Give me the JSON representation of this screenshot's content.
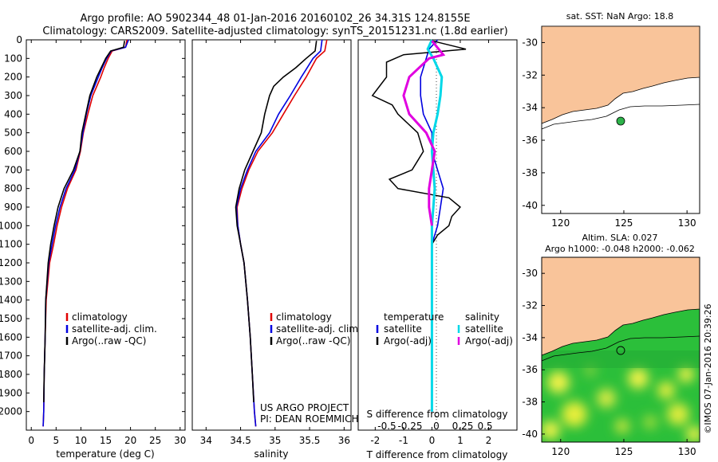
{
  "header": {
    "line1": "Argo profile: AO 5902344_48 01-Jan-2016 20160102_26 34.31S 124.8155E",
    "line2": "Climatology: CARS2009. Satellite-adjusted climatology: synTS_20151231.nc (1.8d earlier)"
  },
  "side_label": "©IMOS 07-Jan-2016 20:39:26",
  "colors": {
    "climatology": "#e00000",
    "satellite": "#0000e0",
    "argo": "#000000",
    "salinity_sat": "#00d8e8",
    "salinity_argo": "#e000e0",
    "land": "#f9c49a",
    "sea_green": "#2bbf3a",
    "float_marker": "#2db34a"
  },
  "chart_data": [
    {
      "type": "line",
      "id": "temperature",
      "xlabel": "temperature (deg C)",
      "ylabel": "",
      "xlim": [
        -1,
        31
      ],
      "ylim": [
        2100,
        0
      ],
      "x_ticks": [
        0,
        5,
        10,
        15,
        20,
        25,
        30
      ],
      "y_ticks": [
        0,
        100,
        200,
        300,
        400,
        500,
        600,
        700,
        800,
        900,
        1000,
        1100,
        1200,
        1300,
        1400,
        1500,
        1600,
        1700,
        1800,
        1900,
        2000
      ],
      "legend": [
        "climatology",
        "satellite-adj. clim.",
        "Argo(..raw -QC)"
      ],
      "series": [
        {
          "name": "climatology",
          "depth": [
            0,
            40,
            60,
            100,
            150,
            200,
            300,
            400,
            500,
            600,
            700,
            800,
            900,
            1000,
            1100,
            1200,
            1400,
            1600,
            1800,
            2000,
            2080
          ],
          "values": [
            19.3,
            19.0,
            16.3,
            15.5,
            14.7,
            14.0,
            12.4,
            11.4,
            10.5,
            9.9,
            9.0,
            7.3,
            6.1,
            5.2,
            4.5,
            3.7,
            3.0,
            2.8,
            2.6,
            2.5,
            2.4
          ]
        },
        {
          "name": "satellite-adj. clim.",
          "depth": [
            0,
            40,
            60,
            100,
            150,
            200,
            300,
            400,
            500,
            600,
            700,
            800,
            900,
            1000,
            1100,
            1200,
            1400,
            1600,
            1800,
            2000,
            2080
          ],
          "values": [
            19.6,
            19.0,
            16.1,
            15.2,
            14.3,
            13.5,
            12.0,
            11.1,
            10.4,
            9.8,
            8.8,
            7.0,
            5.8,
            4.9,
            4.2,
            3.5,
            2.9,
            2.8,
            2.6,
            2.5,
            2.4
          ]
        },
        {
          "name": "Argo(..raw -QC)",
          "depth": [
            5,
            40,
            60,
            100,
            150,
            200,
            300,
            400,
            500,
            600,
            700,
            800,
            900,
            1000,
            1100,
            1200,
            1400,
            1600,
            1800,
            1950
          ],
          "values": [
            18.8,
            18.6,
            16.0,
            15.0,
            14.1,
            13.2,
            11.8,
            11.0,
            10.2,
            9.8,
            8.5,
            6.6,
            5.4,
            4.6,
            3.9,
            3.4,
            2.9,
            2.8,
            2.6,
            2.5
          ]
        }
      ]
    },
    {
      "type": "line",
      "id": "salinity",
      "xlabel": "salinity",
      "xlim": [
        33.8,
        36.1
      ],
      "ylim": [
        2100,
        0
      ],
      "x_ticks": [
        34,
        34.5,
        35,
        35.5,
        36
      ],
      "legend": [
        "climatology",
        "satellite-adj. clim.",
        "Argo(..raw -QC)"
      ],
      "annotation": [
        "US ARGO PROJECT",
        "PI: DEAN ROEMMICH"
      ],
      "series": [
        {
          "name": "climatology",
          "depth": [
            0,
            60,
            100,
            200,
            300,
            400,
            500,
            600,
            700,
            800,
            900,
            1000,
            1100,
            1200,
            1400,
            1600,
            1800,
            2000,
            2080
          ],
          "values": [
            35.75,
            35.72,
            35.6,
            35.45,
            35.28,
            35.12,
            34.96,
            34.75,
            34.62,
            34.52,
            34.45,
            34.46,
            34.5,
            34.55,
            34.6,
            34.64,
            34.67,
            34.7,
            34.72
          ]
        },
        {
          "name": "satellite-adj. clim.",
          "depth": [
            0,
            60,
            100,
            200,
            300,
            400,
            500,
            600,
            700,
            800,
            900,
            1000,
            1100,
            1200,
            1400,
            1600,
            1800,
            2000,
            2080
          ],
          "values": [
            35.68,
            35.66,
            35.55,
            35.38,
            35.22,
            35.05,
            34.92,
            34.72,
            34.6,
            34.5,
            34.44,
            34.46,
            34.5,
            34.55,
            34.6,
            34.64,
            34.67,
            34.7,
            34.72
          ]
        },
        {
          "name": "Argo(..raw -QC)",
          "depth": [
            5,
            60,
            100,
            150,
            200,
            250,
            300,
            400,
            500,
            600,
            700,
            800,
            900,
            1000,
            1100,
            1200,
            1400,
            1600,
            1800,
            1950
          ],
          "values": [
            35.6,
            35.58,
            35.45,
            35.3,
            35.12,
            34.98,
            34.92,
            34.85,
            34.8,
            34.68,
            34.56,
            34.48,
            34.43,
            34.45,
            34.5,
            34.55,
            34.6,
            34.64,
            34.67,
            34.69
          ]
        }
      ]
    },
    {
      "type": "line",
      "id": "difference",
      "xlabel": "T difference from climatology",
      "top_axis_label": "S difference from climatology",
      "xlim": [
        -2.6,
        3.0
      ],
      "ylim": [
        2100,
        0
      ],
      "x_ticks": [
        -2,
        -1,
        0,
        1,
        2
      ],
      "top_ticks": [
        "-0.5",
        "-0.25",
        "0",
        "0.25",
        "0.5"
      ],
      "legend_temperature": [
        "temperature",
        "satellite",
        "Argo(-adj)"
      ],
      "legend_salinity": [
        "salinity",
        "satellite",
        "Argo(-adj)"
      ],
      "series": [
        {
          "name": "T satellite",
          "depth": [
            0,
            50,
            100,
            200,
            300,
            400,
            500,
            600,
            700,
            800,
            900,
            1000,
            1100,
            1200,
            1400,
            1700,
            2000
          ],
          "values": [
            0.2,
            -0.1,
            -0.2,
            -0.4,
            -0.4,
            -0.3,
            0.0,
            0.0,
            0.2,
            0.4,
            0.3,
            0.2,
            0.0,
            0.0,
            0.0,
            0.0,
            0.0
          ]
        },
        {
          "name": "T Argo(-adj)",
          "depth": [
            5,
            50,
            80,
            120,
            200,
            300,
            350,
            400,
            500,
            600,
            650,
            700,
            750,
            800,
            850,
            900,
            950,
            1000,
            1050,
            1100,
            1200
          ],
          "values": [
            0.0,
            1.2,
            -1.0,
            -1.6,
            -1.6,
            -2.1,
            -1.4,
            -1.2,
            -0.5,
            -0.3,
            -0.5,
            -0.7,
            -1.5,
            -1.2,
            0.6,
            1.0,
            0.7,
            0.6,
            0.2,
            0.0,
            0.0
          ]
        },
        {
          "name": "S satellite",
          "depth": [
            0,
            50,
            100,
            200,
            300,
            400,
            500,
            600,
            700,
            800,
            900,
            1000,
            1200,
            1400,
            1700,
            2000
          ],
          "values": [
            0.0,
            -0.15,
            0.05,
            0.35,
            0.3,
            0.2,
            0.05,
            0.0,
            0.05,
            0.1,
            0.05,
            0.0,
            0.0,
            0.0,
            0.0,
            0.0
          ]
        },
        {
          "name": "S Argo(-adj)",
          "depth": [
            5,
            80,
            100,
            200,
            300,
            400,
            500,
            600,
            700,
            800,
            900,
            1000
          ],
          "values": [
            0.0,
            0.4,
            -0.1,
            -0.8,
            -1.0,
            -0.8,
            -0.2,
            0.1,
            0.0,
            -0.1,
            -0.1,
            0.0
          ]
        }
      ]
    },
    {
      "type": "map",
      "id": "sst_map",
      "title": "sat. SST: NaN Argo: 18.8",
      "xlim": [
        118.5,
        131
      ],
      "ylim": [
        -40.5,
        -29
      ],
      "x_ticks": [
        120,
        125,
        130
      ],
      "y_ticks": [
        -30,
        -32,
        -34,
        -36,
        -38,
        -40
      ],
      "float_position": {
        "lon": 124.8155,
        "lat": -34.31
      }
    },
    {
      "type": "heatmap",
      "id": "sla_map",
      "title": "Altim. SLA: 0.027",
      "subtitle": "Argo h1000: -0.048 h2000: -0.062",
      "xlim": [
        118.5,
        131
      ],
      "ylim": [
        -40.5,
        -29
      ],
      "x_ticks": [
        120,
        125,
        130
      ],
      "y_ticks": [
        -30,
        -32,
        -34,
        -36,
        -38,
        -40
      ],
      "float_position": {
        "lon": 124.8155,
        "lat": -34.31
      }
    }
  ]
}
